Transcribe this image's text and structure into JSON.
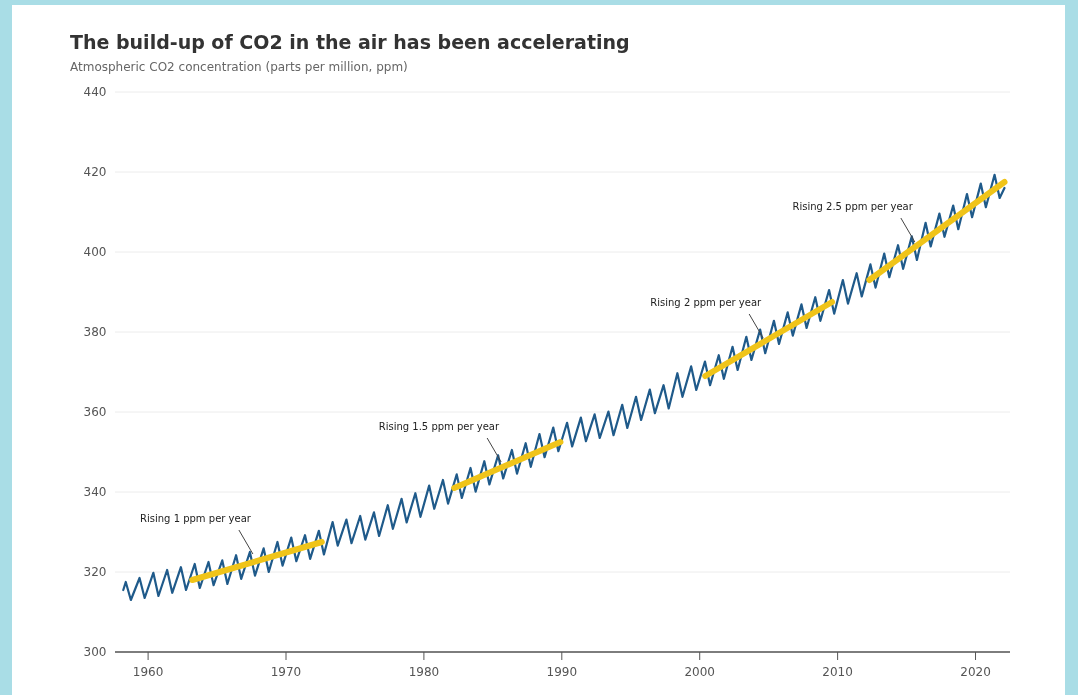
{
  "chart_data": {
    "type": "line",
    "title": "The build-up of CO2 in the air has been accelerating",
    "subtitle": "Atmospheric CO2 concentration (parts per million, ppm)",
    "xlim": [
      1957.6,
      2022.5
    ],
    "ylim": [
      300,
      440
    ],
    "xticks": [
      1960,
      1970,
      1980,
      1990,
      2000,
      2010,
      2020
    ],
    "yticks": [
      300,
      320,
      340,
      360,
      380,
      400,
      420,
      440
    ],
    "grid": "y",
    "series": [
      {
        "color": "#1f5a8a",
        "x": [
          1958.2,
          1958.38,
          1958.75,
          1959.38,
          1959.75,
          1960.38,
          1960.75,
          1961.38,
          1961.75,
          1962.38,
          1962.75,
          1963.38,
          1963.75,
          1964.38,
          1964.75,
          1965.38,
          1965.75,
          1966.38,
          1966.75,
          1967.38,
          1967.75,
          1968.38,
          1968.75,
          1969.38,
          1969.75,
          1970.38,
          1970.75,
          1971.38,
          1971.75,
          1972.38,
          1972.75,
          1973.38,
          1973.75,
          1974.38,
          1974.75,
          1975.38,
          1975.75,
          1976.38,
          1976.75,
          1977.38,
          1977.75,
          1978.38,
          1978.75,
          1979.38,
          1979.75,
          1980.38,
          1980.75,
          1981.38,
          1981.75,
          1982.38,
          1982.75,
          1983.38,
          1983.75,
          1984.38,
          1984.75,
          1985.38,
          1985.75,
          1986.38,
          1986.75,
          1987.38,
          1987.75,
          1988.38,
          1988.75,
          1989.38,
          1989.75,
          1990.38,
          1990.75,
          1991.38,
          1991.75,
          1992.38,
          1992.75,
          1993.38,
          1993.75,
          1994.38,
          1994.75,
          1995.38,
          1995.75,
          1996.38,
          1996.75,
          1997.38,
          1997.75,
          1998.38,
          1998.75,
          1999.38,
          1999.75,
          2000.38,
          2000.75,
          2001.38,
          2001.75,
          2002.38,
          2002.75,
          2003.38,
          2003.75,
          2004.38,
          2004.75,
          2005.38,
          2005.75,
          2006.38,
          2006.75,
          2007.38,
          2007.75,
          2008.38,
          2008.75,
          2009.38,
          2009.75,
          2010.38,
          2010.75,
          2011.38,
          2011.75,
          2012.38,
          2012.75,
          2013.38,
          2013.75,
          2014.38,
          2014.75,
          2015.38,
          2015.75,
          2016.38,
          2016.75,
          2017.38,
          2017.75,
          2018.38,
          2018.75,
          2019.38,
          2019.75,
          2020.38,
          2020.75,
          2021.38,
          2021.75,
          2022.1
        ],
        "values": [
          315.5,
          317.5,
          313.0,
          318.5,
          313.5,
          319.8,
          314.0,
          320.5,
          314.8,
          321.2,
          315.5,
          322.0,
          316.0,
          322.5,
          316.7,
          322.9,
          317.0,
          324.2,
          318.3,
          325.0,
          319.1,
          325.9,
          320.0,
          327.5,
          321.6,
          328.6,
          322.7,
          329.2,
          323.3,
          330.3,
          324.4,
          332.5,
          326.6,
          333.1,
          327.2,
          334.0,
          328.1,
          334.9,
          329.0,
          336.7,
          330.8,
          338.3,
          332.4,
          339.7,
          333.8,
          341.6,
          335.8,
          343.0,
          337.1,
          344.4,
          338.5,
          346.0,
          340.1,
          347.7,
          341.9,
          349.2,
          343.4,
          350.5,
          344.6,
          352.2,
          346.3,
          354.5,
          348.7,
          356.1,
          350.2,
          357.3,
          351.4,
          358.6,
          352.7,
          359.4,
          353.5,
          360.1,
          354.2,
          361.8,
          356.0,
          363.8,
          358.0,
          365.6,
          359.7,
          366.7,
          360.9,
          369.7,
          363.8,
          371.4,
          365.5,
          372.6,
          366.7,
          374.2,
          368.3,
          376.3,
          370.5,
          378.8,
          373.0,
          380.6,
          374.7,
          382.8,
          377.0,
          384.9,
          379.1,
          386.9,
          381.0,
          388.7,
          382.8,
          390.5,
          384.6,
          393.0,
          387.1,
          394.7,
          388.9,
          396.9,
          391.1,
          399.6,
          393.7,
          401.7,
          395.8,
          403.9,
          398.0,
          407.3,
          401.4,
          409.6,
          403.8,
          411.6,
          405.7,
          414.5,
          408.7,
          417.1,
          411.2,
          419.3,
          413.5,
          416.0
        ]
      },
      {
        "color": "#f0c419",
        "x": [
          1963.2,
          1972.6
        ],
        "values": [
          318,
          327.5
        ]
      },
      {
        "color": "#f0c419",
        "x": [
          1982.2,
          1989.9
        ],
        "values": [
          341,
          352.5
        ]
      },
      {
        "color": "#f0c419",
        "x": [
          2000.4,
          2009.6
        ],
        "values": [
          369,
          387.5
        ]
      },
      {
        "color": "#f0c419",
        "x": [
          2012.3,
          2022.1
        ],
        "values": [
          393,
          417.5
        ]
      }
    ],
    "annotations": [
      {
        "text": "Rising 1 ppm per year",
        "x": 1967.6,
        "y": 323.5
      },
      {
        "text": "Rising 1.5 ppm per year",
        "x": 1985.6,
        "y": 346.5
      },
      {
        "text": "Rising 2 ppm per year",
        "x": 2004.6,
        "y": 377.5
      },
      {
        "text": "Rising 2.5 ppm per year",
        "x": 2015.6,
        "y": 401.5
      }
    ]
  }
}
